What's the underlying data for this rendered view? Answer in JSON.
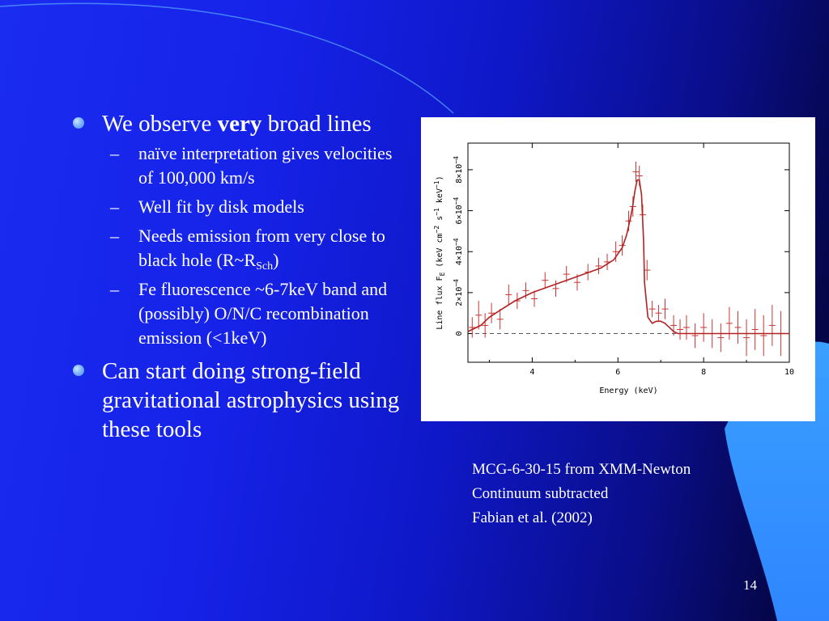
{
  "slide": {
    "bullets": [
      {
        "prefix": "We observe ",
        "bold": "very",
        "suffix": " broad lines"
      },
      {
        "text": "Can start doing strong-field gravitational astrophysics using these tools"
      }
    ],
    "subbullets": [
      {
        "text": "naïve interpretation gives velocities of 100,000 km/s"
      },
      {
        "text": "Well fit by disk models"
      },
      {
        "prefix": "Needs emission from very close to black hole (R~R",
        "sub": "Sch",
        "suffix": ")"
      },
      {
        "text": "Fe fluorescence ~6-7keV band and (possibly) O/N/C recombination emission (<1keV)"
      }
    ],
    "dash": "–",
    "caption_lines": [
      "MCG-6-30-15 from XMM-Newton",
      "Continuum subtracted",
      "Fabian et al. (2002)"
    ],
    "page_number": "14"
  },
  "chart_data": {
    "type": "line",
    "xlabel": "Energy (keV)",
    "ylabel": "Line flux F",
    "ylabel_sub": "E",
    "ylabel_units": "(keV cm",
    "ylabel_units_exp1": "−2",
    "ylabel_units_mid": " s",
    "ylabel_units_exp2": "−1",
    "ylabel_units_mid2": " keV",
    "ylabel_units_exp3": "−1",
    "ylabel_units_end": ")",
    "xlim": [
      2.5,
      10
    ],
    "ylim": [
      -0.00014,
      0.00093
    ],
    "xticks": [
      4,
      6,
      8,
      10
    ],
    "xtick_labels": [
      "4",
      "6",
      "8",
      "10"
    ],
    "yticks": [
      0,
      0.0002,
      0.0004,
      0.0006,
      0.0008
    ],
    "ytick_labels": [
      {
        "base": "0",
        "exp": ""
      },
      {
        "base": "2×10",
        "exp": "−4"
      },
      {
        "base": "4×10",
        "exp": "−4"
      },
      {
        "base": "6×10",
        "exp": "−4"
      },
      {
        "base": "8×10",
        "exp": "−4"
      }
    ],
    "zero_line": {
      "y": 0,
      "style": "dashed"
    },
    "colors": {
      "model": "#b22222",
      "data": "#cc3333",
      "axis": "#000000",
      "zero": "#555555"
    },
    "series": [
      {
        "kind": "model",
        "x": [
          2.5,
          2.8,
          3.0,
          3.3,
          3.6,
          4.0,
          4.4,
          4.8,
          5.2,
          5.6,
          5.9,
          6.1,
          6.2,
          6.3,
          6.35,
          6.4,
          6.45,
          6.5,
          6.55,
          6.6,
          6.62,
          6.7,
          6.8,
          6.9,
          7.0,
          7.1,
          7.2,
          7.3,
          7.4,
          7.6,
          8.0,
          9.0,
          10.0
        ],
        "y": [
          1e-05,
          4e-05,
          8e-05,
          0.00012,
          0.00016,
          0.0002,
          0.00023,
          0.00026,
          0.00029,
          0.00032,
          0.00036,
          0.00042,
          0.00048,
          0.00057,
          0.00063,
          0.0007,
          0.00075,
          0.00075,
          0.00068,
          0.00045,
          0.00025,
          8e-05,
          5e-05,
          6e-05,
          6e-05,
          5e-05,
          3e-05,
          1e-05,
          0.0,
          0.0,
          0.0,
          0.0,
          0.0
        ]
      },
      {
        "kind": "data",
        "points": [
          {
            "x": 2.6,
            "y": 3e-05,
            "e": 5e-05
          },
          {
            "x": 2.75,
            "y": 9e-05,
            "e": 7e-05
          },
          {
            "x": 2.9,
            "y": 4e-05,
            "e": 6e-05
          },
          {
            "x": 3.05,
            "y": 0.0001,
            "e": 5e-05
          },
          {
            "x": 3.25,
            "y": 7e-05,
            "e": 5e-05
          },
          {
            "x": 3.45,
            "y": 0.00019,
            "e": 5e-05
          },
          {
            "x": 3.65,
            "y": 0.00016,
            "e": 4e-05
          },
          {
            "x": 3.85,
            "y": 0.00021,
            "e": 4e-05
          },
          {
            "x": 4.05,
            "y": 0.00017,
            "e": 4e-05
          },
          {
            "x": 4.3,
            "y": 0.00026,
            "e": 4e-05
          },
          {
            "x": 4.55,
            "y": 0.00022,
            "e": 4e-05
          },
          {
            "x": 4.8,
            "y": 0.00029,
            "e": 4e-05
          },
          {
            "x": 5.05,
            "y": 0.00025,
            "e": 4e-05
          },
          {
            "x": 5.3,
            "y": 0.0003,
            "e": 4e-05
          },
          {
            "x": 5.55,
            "y": 0.00033,
            "e": 4e-05
          },
          {
            "x": 5.75,
            "y": 0.00035,
            "e": 4e-05
          },
          {
            "x": 5.95,
            "y": 0.0004,
            "e": 5e-05
          },
          {
            "x": 6.1,
            "y": 0.00043,
            "e": 5e-05
          },
          {
            "x": 6.25,
            "y": 0.00055,
            "e": 5e-05
          },
          {
            "x": 6.35,
            "y": 0.00062,
            "e": 5e-05
          },
          {
            "x": 6.42,
            "y": 0.00079,
            "e": 5e-05
          },
          {
            "x": 6.5,
            "y": 0.00077,
            "e": 5e-05
          },
          {
            "x": 6.58,
            "y": 0.00058,
            "e": 5e-05
          },
          {
            "x": 6.68,
            "y": 0.00031,
            "e": 5e-05
          },
          {
            "x": 6.8,
            "y": 0.00012,
            "e": 4e-05
          },
          {
            "x": 6.95,
            "y": 0.0001,
            "e": 4e-05
          },
          {
            "x": 7.1,
            "y": 0.00012,
            "e": 5e-05
          },
          {
            "x": 7.3,
            "y": 4e-05,
            "e": 5e-05
          },
          {
            "x": 7.45,
            "y": 2e-05,
            "e": 5e-05
          },
          {
            "x": 7.6,
            "y": 3e-05,
            "e": 6e-05
          },
          {
            "x": 7.8,
            "y": -1e-05,
            "e": 6e-05
          },
          {
            "x": 8.0,
            "y": 3e-05,
            "e": 7e-05
          },
          {
            "x": 8.2,
            "y": 0.0,
            "e": 7e-05
          },
          {
            "x": 8.4,
            "y": -2e-05,
            "e": 7e-05
          },
          {
            "x": 8.6,
            "y": 5e-05,
            "e": 8e-05
          },
          {
            "x": 8.8,
            "y": 3e-05,
            "e": 8e-05
          },
          {
            "x": 9.0,
            "y": -2e-05,
            "e": 9e-05
          },
          {
            "x": 9.2,
            "y": 2e-05,
            "e": 0.0001
          },
          {
            "x": 9.4,
            "y": -1e-05,
            "e": 0.0001
          },
          {
            "x": 9.6,
            "y": 4e-05,
            "e": 0.0001
          },
          {
            "x": 9.8,
            "y": 0.0,
            "e": 0.00011
          }
        ]
      }
    ]
  }
}
